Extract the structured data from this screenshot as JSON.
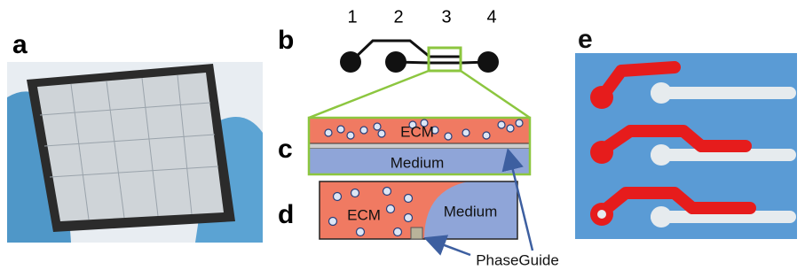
{
  "panels": [
    {
      "label": "a"
    },
    {
      "label": "b",
      "ports": [
        "1",
        "2",
        "3",
        "4"
      ]
    },
    {
      "label": "c",
      "top": "ECM",
      "bottom": "Medium"
    },
    {
      "label": "d",
      "left": "ECM",
      "right": "Medium"
    },
    {
      "label": "e"
    }
  ],
  "annotation": "PhaseGuide"
}
